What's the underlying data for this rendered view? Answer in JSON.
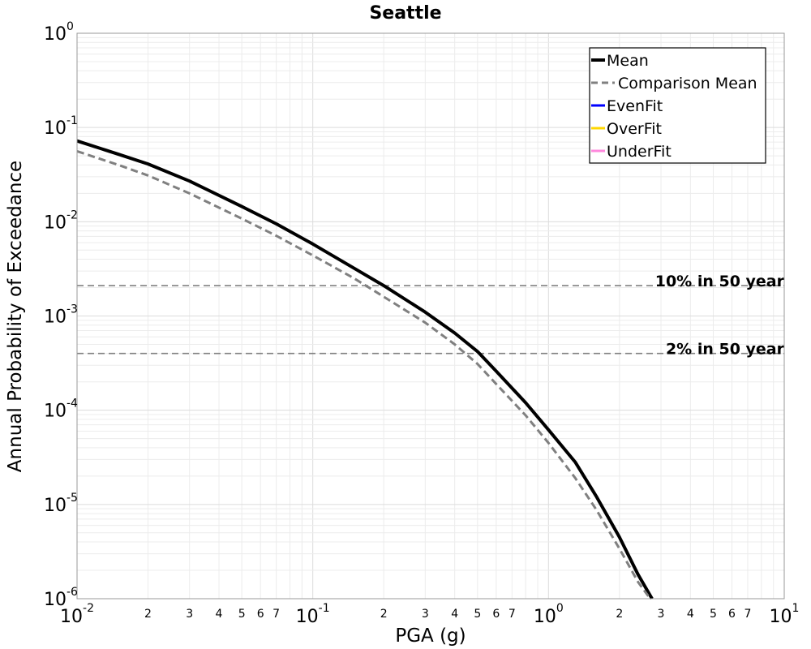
{
  "chart_data": {
    "type": "line",
    "title": "Seattle",
    "xlabel": "PGA (g)",
    "ylabel": "Annual Probability of Exceedance",
    "xscale": "log",
    "yscale": "log",
    "xlim": [
      0.01,
      10
    ],
    "ylim": [
      1e-06,
      1
    ],
    "grid": true,
    "legend_position": "top-right",
    "x_major_ticks": [
      {
        "value": 0.01,
        "base": "10",
        "exp": "-2"
      },
      {
        "value": 0.1,
        "base": "10",
        "exp": "-1"
      },
      {
        "value": 1,
        "base": "10",
        "exp": "0"
      },
      {
        "value": 10,
        "base": "10",
        "exp": "1"
      }
    ],
    "x_minor_tick_labels": [
      "2",
      "3",
      "4",
      "5",
      "6",
      "7"
    ],
    "y_major_ticks": [
      {
        "value": 1,
        "base": "10",
        "exp": "0"
      },
      {
        "value": 0.1,
        "base": "10",
        "exp": "-1"
      },
      {
        "value": 0.01,
        "base": "10",
        "exp": "-2"
      },
      {
        "value": 0.001,
        "base": "10",
        "exp": "-3"
      },
      {
        "value": 0.0001,
        "base": "10",
        "exp": "-4"
      },
      {
        "value": 1e-05,
        "base": "10",
        "exp": "-5"
      },
      {
        "value": 1e-06,
        "base": "10",
        "exp": "-6"
      }
    ],
    "series": [
      {
        "name": "Mean",
        "color": "#000000",
        "style": "solid",
        "x": [
          0.01,
          0.015,
          0.02,
          0.03,
          0.05,
          0.07,
          0.1,
          0.15,
          0.2,
          0.3,
          0.4,
          0.5,
          0.6,
          0.8,
          1.0,
          1.3,
          1.6,
          2.0,
          2.4,
          2.75
        ],
        "y": [
          0.072,
          0.052,
          0.041,
          0.027,
          0.0145,
          0.0095,
          0.0058,
          0.0032,
          0.0021,
          0.0011,
          0.00066,
          0.00042,
          0.00026,
          0.00012,
          6.2e-05,
          2.8e-05,
          1.2e-05,
          4.5e-06,
          1.8e-06,
          1e-06
        ]
      },
      {
        "name": "Comparison Mean",
        "color": "#808080",
        "style": "dashed",
        "x": [
          0.01,
          0.015,
          0.02,
          0.03,
          0.05,
          0.07,
          0.1,
          0.15,
          0.2,
          0.3,
          0.4,
          0.5,
          0.6,
          0.8,
          1.0,
          1.3,
          1.6,
          2.0,
          2.4,
          2.7
        ],
        "y": [
          0.056,
          0.04,
          0.031,
          0.02,
          0.0108,
          0.0071,
          0.0044,
          0.0025,
          0.0016,
          0.00085,
          0.0005,
          0.00031,
          0.00019,
          8.8e-05,
          4.5e-05,
          1.9e-05,
          8.7e-06,
          3.4e-06,
          1.5e-06,
          1e-06
        ]
      },
      {
        "name": "EvenFit",
        "color": "#0000ff",
        "style": "solid",
        "x": [],
        "y": []
      },
      {
        "name": "OverFit",
        "color": "#ffd700",
        "style": "solid",
        "x": [],
        "y": []
      },
      {
        "name": "UnderFit",
        "color": "#ff88dd",
        "style": "solid",
        "x": [],
        "y": []
      }
    ],
    "reference_lines": [
      {
        "label": "10% in 50 year",
        "y": 0.0021,
        "color": "#808080"
      },
      {
        "label": "2% in 50 year",
        "y": 0.0004,
        "color": "#808080"
      }
    ]
  }
}
